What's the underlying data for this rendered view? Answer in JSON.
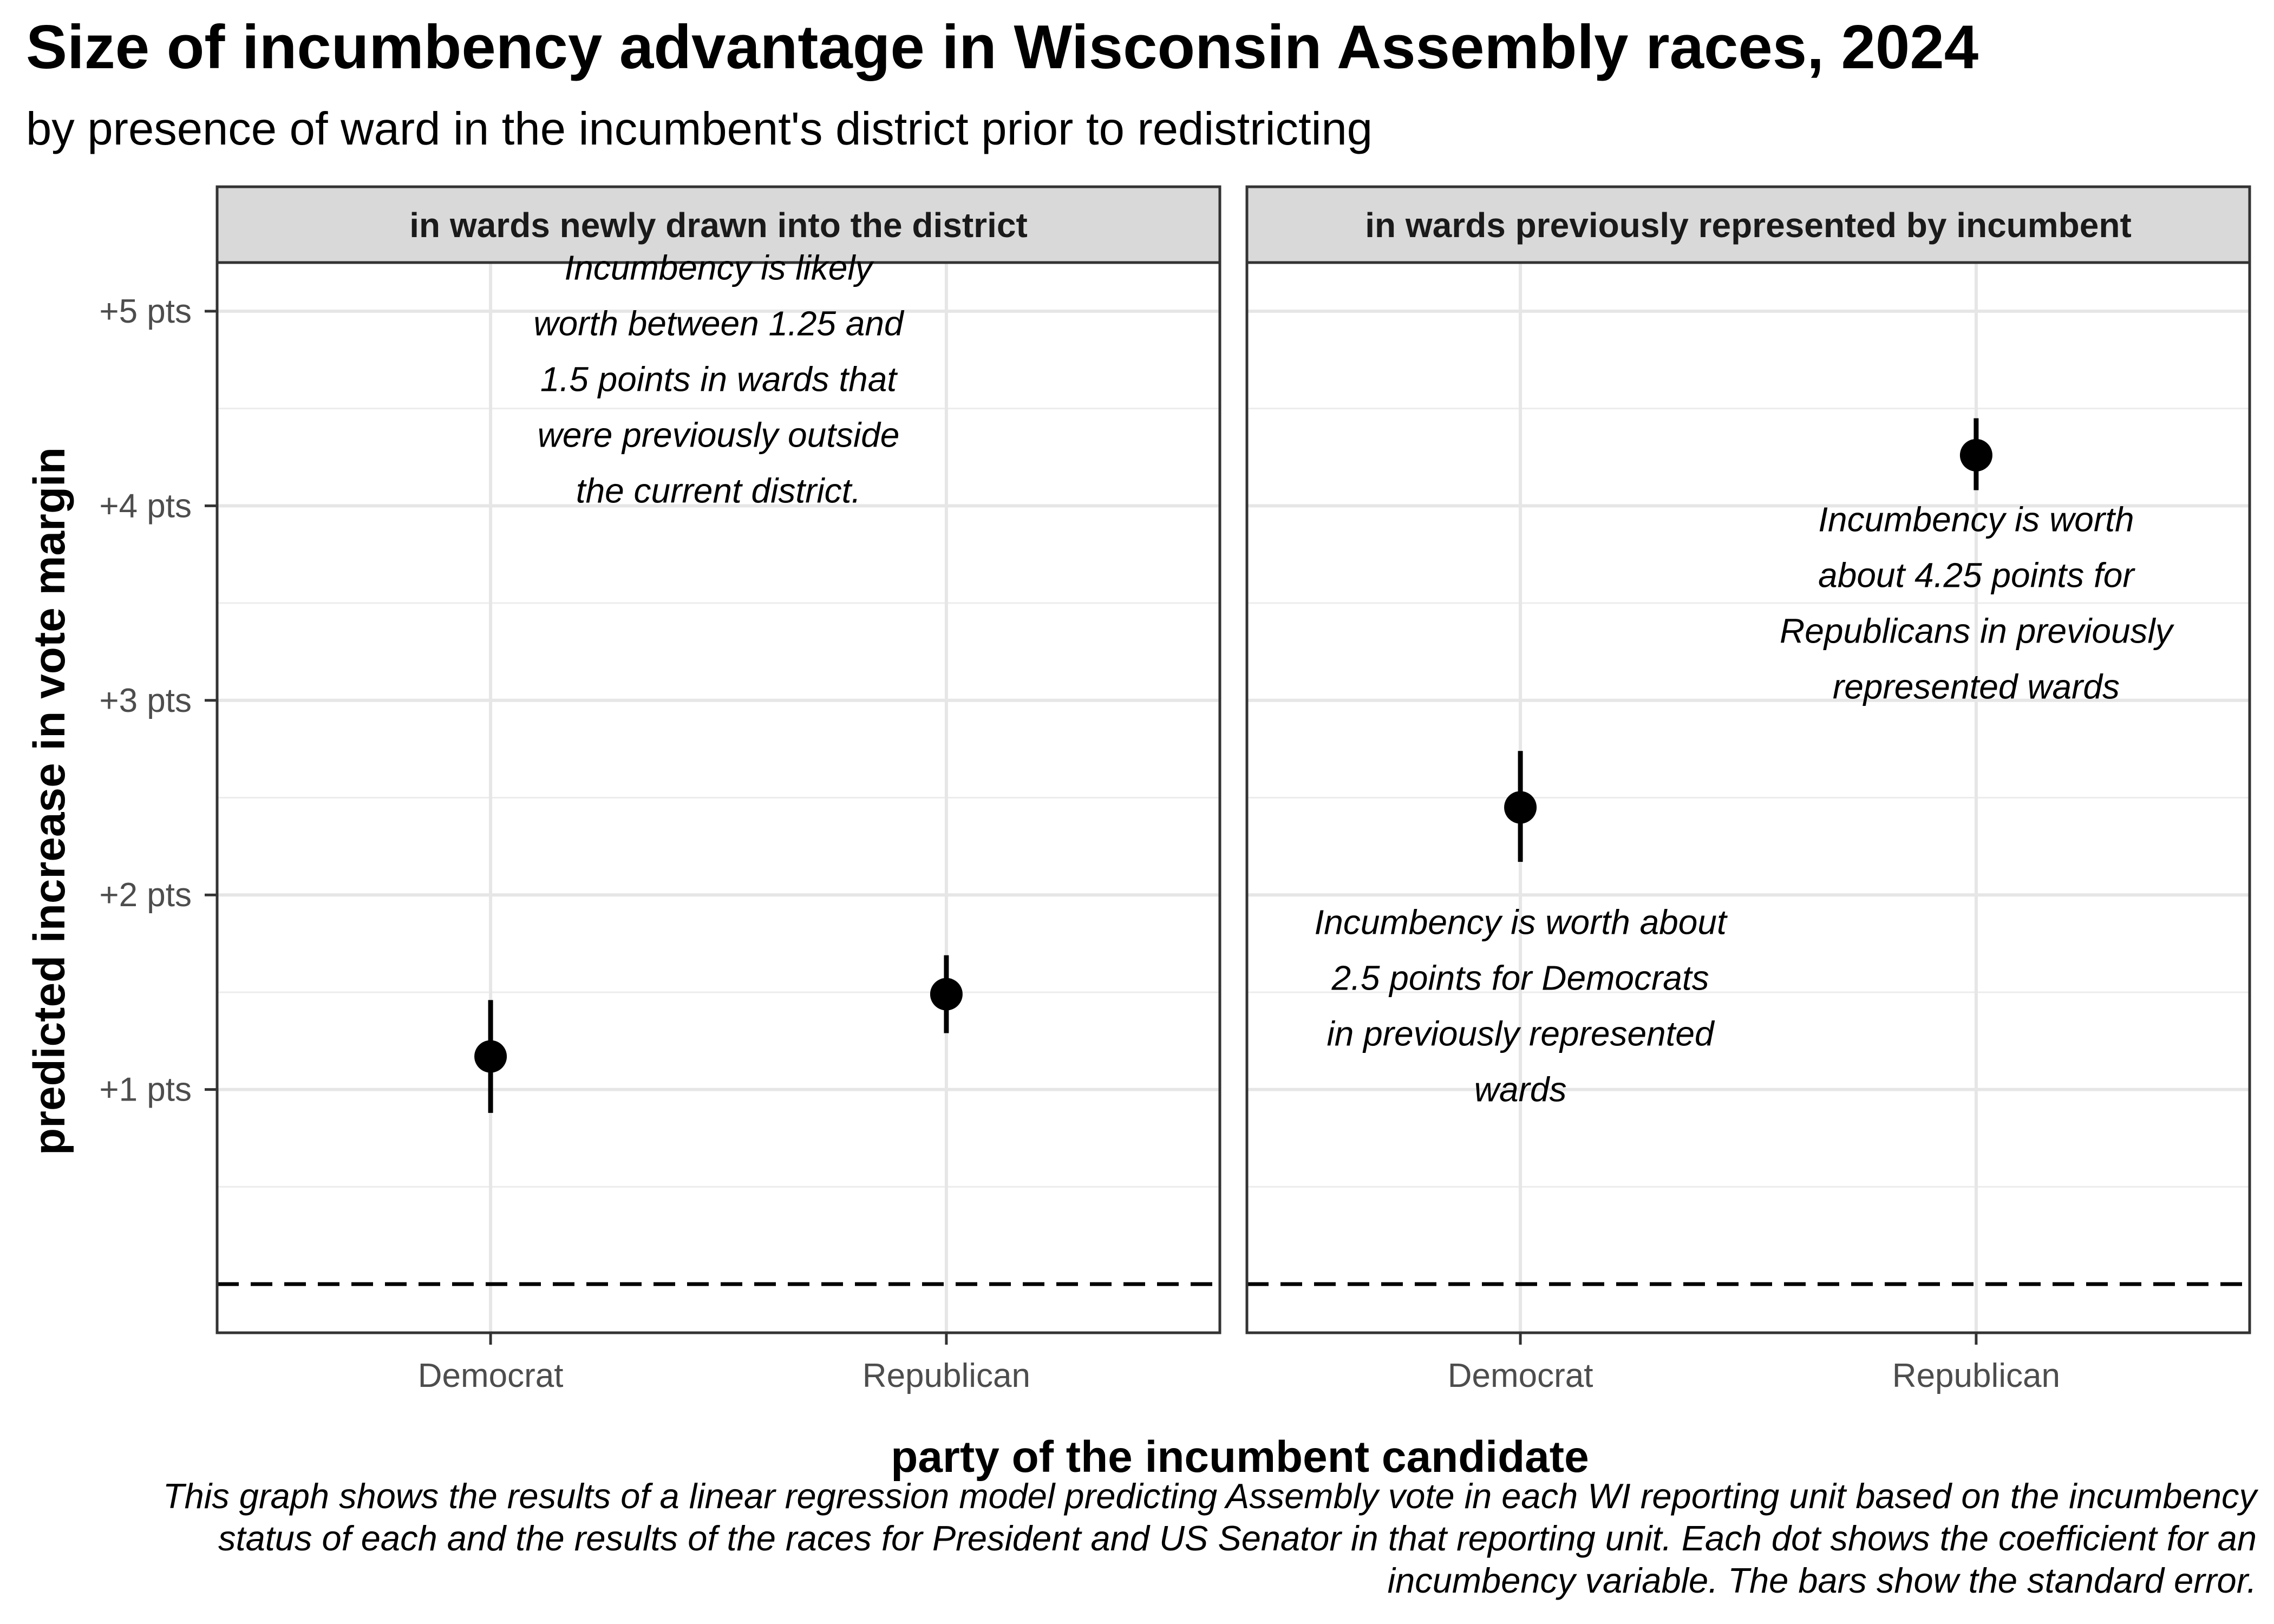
{
  "chart_data": {
    "type": "scatter",
    "title": "Size of incumbency advantage in Wisconsin Assembly races, 2024",
    "subtitle": "by presence of ward in the incumbent's district prior to redistricting",
    "xlabel": "party of the incumbent candidate",
    "ylabel": "predicted increase in vote margin",
    "ylim": [
      -0.25,
      5.25
    ],
    "y_ticks": [
      {
        "value": 1,
        "label": "+1 pts"
      },
      {
        "value": 2,
        "label": "+2 pts"
      },
      {
        "value": 3,
        "label": "+3 pts"
      },
      {
        "value": 4,
        "label": "+4 pts"
      },
      {
        "value": 5,
        "label": "+5 pts"
      }
    ],
    "reference_line": {
      "value": 0,
      "style": "dashed"
    },
    "categories": [
      "Democrat",
      "Republican"
    ],
    "panels": [
      {
        "label": "in wards newly drawn into the district",
        "points": [
          {
            "category": "Democrat",
            "value": 1.17,
            "low": 0.88,
            "high": 1.46
          },
          {
            "category": "Republican",
            "value": 1.49,
            "low": 1.29,
            "high": 1.69
          }
        ],
        "annotations": [
          {
            "category_position": 1.5,
            "value": 4.65,
            "lines": [
              "Incumbency is likely",
              "worth between 1.25 and",
              "1.5 points in wards that",
              "were previously outside",
              "the current district."
            ]
          }
        ]
      },
      {
        "label": "in wards previously represented by incumbent",
        "points": [
          {
            "category": "Democrat",
            "value": 2.45,
            "low": 2.17,
            "high": 2.74
          },
          {
            "category": "Republican",
            "value": 4.26,
            "low": 4.08,
            "high": 4.45
          }
        ],
        "annotations": [
          {
            "category_position": 1,
            "value": 1.43,
            "lines": [
              "Incumbency is worth about",
              "2.5 points for Democrats",
              "in previously represented",
              "wards"
            ]
          },
          {
            "category_position": 2,
            "value": 3.5,
            "lines": [
              "Incumbency is worth",
              "about 4.25 points for",
              "Republicans in previously",
              "represented wards"
            ]
          }
        ]
      }
    ]
  },
  "caption": "This graph shows the results of a linear regression model predicting Assembly vote in each WI reporting unit based on the incumbency status of each and the results of the races for President and US Senator in that reporting unit. Each dot shows the coefficient for an incumbency variable. The bars show the standard error."
}
